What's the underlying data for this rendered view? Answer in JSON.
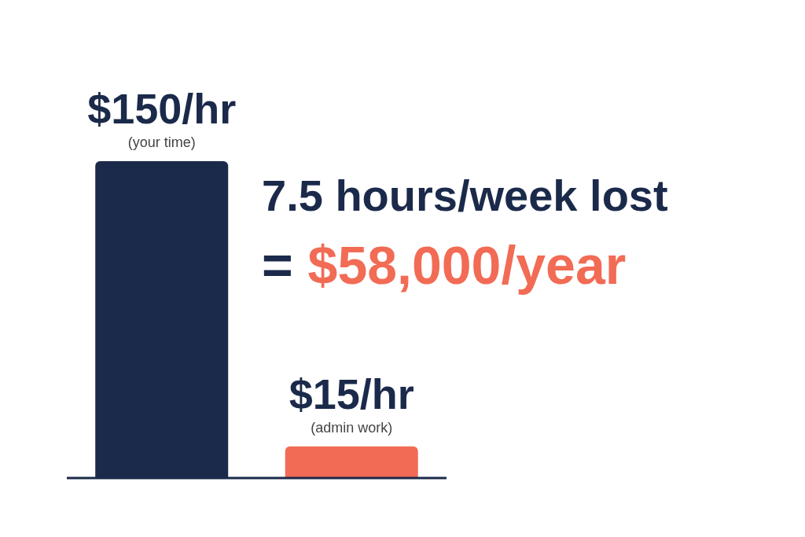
{
  "chart_data": {
    "type": "bar",
    "categories": [
      "(your time)",
      "(admin work)"
    ],
    "values": [
      150,
      15
    ],
    "value_labels": [
      "$150/hr",
      "$15/hr"
    ],
    "colors": [
      "#1b2a4a",
      "#f26b55"
    ],
    "annotations": [
      "7.5 hours/week lost",
      "= $58,000/year"
    ],
    "grid": false,
    "legend": false
  }
}
